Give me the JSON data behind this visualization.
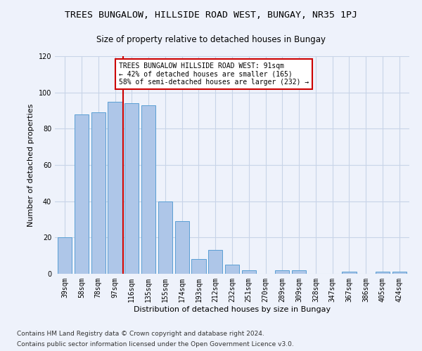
{
  "title": "TREES BUNGALOW, HILLSIDE ROAD WEST, BUNGAY, NR35 1PJ",
  "subtitle": "Size of property relative to detached houses in Bungay",
  "xlabel": "Distribution of detached houses by size in Bungay",
  "ylabel": "Number of detached properties",
  "categories": [
    "39sqm",
    "58sqm",
    "78sqm",
    "97sqm",
    "116sqm",
    "135sqm",
    "155sqm",
    "174sqm",
    "193sqm",
    "212sqm",
    "232sqm",
    "251sqm",
    "270sqm",
    "289sqm",
    "309sqm",
    "328sqm",
    "347sqm",
    "367sqm",
    "386sqm",
    "405sqm",
    "424sqm"
  ],
  "values": [
    20,
    88,
    89,
    95,
    94,
    93,
    40,
    29,
    8,
    13,
    5,
    2,
    0,
    2,
    2,
    0,
    0,
    1,
    0,
    1,
    1
  ],
  "bar_color": "#aec6e8",
  "bar_edge_color": "#5a9fd4",
  "vline_x": 3.5,
  "vline_color": "#cc0000",
  "ylim": [
    0,
    120
  ],
  "yticks": [
    0,
    20,
    40,
    60,
    80,
    100,
    120
  ],
  "annotation_text": "TREES BUNGALOW HILLSIDE ROAD WEST: 91sqm\n← 42% of detached houses are smaller (165)\n58% of semi-detached houses are larger (232) →",
  "annotation_box_color": "#ffffff",
  "annotation_box_edge_color": "#cc0000",
  "footer_line1": "Contains HM Land Registry data © Crown copyright and database right 2024.",
  "footer_line2": "Contains public sector information licensed under the Open Government Licence v3.0.",
  "background_color": "#eef2fb",
  "grid_color": "#c8d4e8",
  "title_fontsize": 9.5,
  "subtitle_fontsize": 8.5,
  "axis_label_fontsize": 8,
  "tick_fontsize": 7,
  "annotation_fontsize": 7,
  "footer_fontsize": 6.5
}
